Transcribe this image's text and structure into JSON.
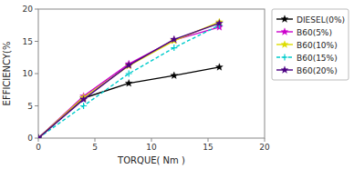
{
  "chart_data": {
    "type": "line",
    "x_label": "TORQUE( Nm )",
    "y_label": "EFFICIENCY(%",
    "x": [
      0,
      4,
      8,
      12,
      16
    ],
    "xlim": [
      0,
      20
    ],
    "ylim": [
      0,
      20
    ],
    "xticks": [
      0,
      5,
      10,
      15,
      20
    ],
    "yticks": [
      0,
      5,
      10,
      15,
      20
    ],
    "grid": false,
    "legend": "right",
    "series": [
      {
        "name": "DIESEL(0%)",
        "color": "#000000",
        "marker": "star",
        "line_style": "solid",
        "values": [
          0,
          6.2,
          8.5,
          9.7,
          11.0
        ]
      },
      {
        "name": "B60(5%)",
        "color": "#cc00cc",
        "marker": "star",
        "line_style": "solid",
        "values": [
          0,
          6.5,
          11.5,
          15.2,
          17.2
        ]
      },
      {
        "name": "B60(10%)",
        "color": "#dddd00",
        "marker": "star",
        "line_style": "solid",
        "values": [
          0,
          6.3,
          11.2,
          15.1,
          18.0
        ]
      },
      {
        "name": "B60(15%)",
        "color": "#00cccc",
        "marker": "plus",
        "line_style": "dashed",
        "values": [
          0,
          5.0,
          10.0,
          14.0,
          17.5
        ]
      },
      {
        "name": "B60(20%)",
        "color": "#4b0082",
        "marker": "star",
        "line_style": "solid",
        "values": [
          0,
          6.0,
          11.3,
          15.3,
          17.8
        ]
      }
    ]
  }
}
